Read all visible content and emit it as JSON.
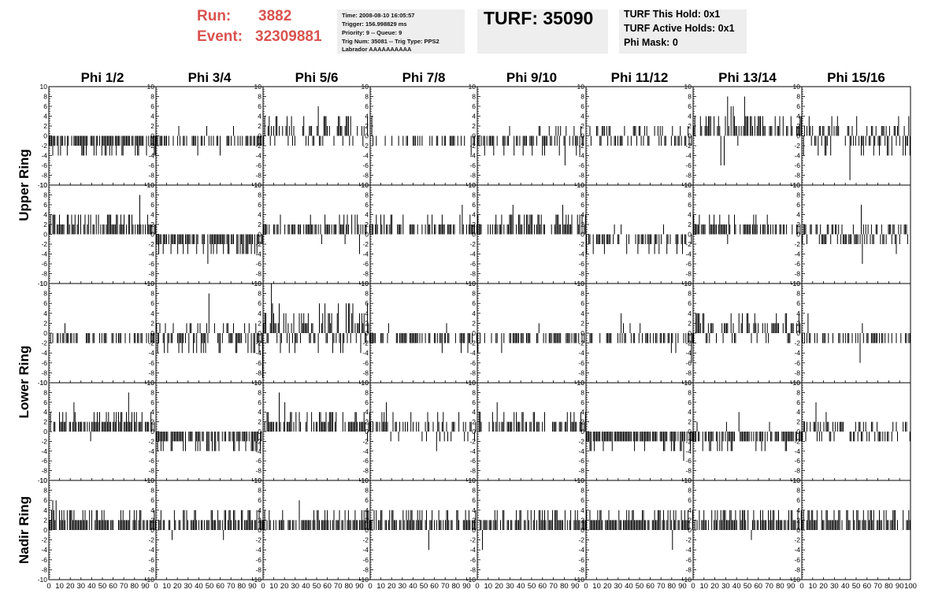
{
  "header": {
    "run_label": "Run:",
    "run_value": "3882",
    "event_label": "Event:",
    "event_value": "32309881",
    "info_lines": [
      "Time: 2008-08-10 16:05:57",
      "Trigger: 156.998829 ms",
      "Priority: 9 -- Queue: 9",
      "Trig Num: 35081 -- Trig Type: PPS2",
      "Labrador AAAAAAAAAA"
    ],
    "turf_title": "TURF: 35090",
    "hold_lines": [
      "TURF This Hold: 0x1",
      "TURF Active Holds: 0x1",
      "Phi Mask: 0"
    ],
    "colors": {
      "red_text": "#d9534f",
      "box_bg": "#eeeeee"
    }
  },
  "chart_data": {
    "type": "bar",
    "columns": [
      "Phi 1/2",
      "Phi 3/4",
      "Phi 5/6",
      "Phi 7/8",
      "Phi 9/10",
      "Phi 11/12",
      "Phi 13/14",
      "Phi 15/16"
    ],
    "ring_labels": [
      {
        "label": "Upper Ring"
      },
      {
        "label": "Lower Ring"
      },
      {
        "label": "Nadir Ring"
      }
    ],
    "ylim": [
      -10,
      10
    ],
    "y_ticks": [
      "10",
      "8",
      "6",
      "4",
      "2",
      "0",
      "-2",
      "-4",
      "-6",
      "-8",
      "-10"
    ],
    "xlim": [
      0,
      100
    ],
    "x_ticks": [
      "0",
      "10",
      "20",
      "30",
      "40",
      "50",
      "60",
      "70",
      "80",
      "90",
      "100"
    ],
    "samples_per_panel": 96,
    "panel_rows": [
      [
        {
          "base": -2,
          "amp": 2
        },
        {
          "base": -1,
          "amp": 2
        },
        {
          "base": 1,
          "amp": 3
        },
        {
          "base": -0.5,
          "amp": 1.5
        },
        {
          "base": -1,
          "amp": 2.5
        },
        {
          "base": 0,
          "amp": 2.5
        },
        {
          "base": 2,
          "amp": 3
        },
        {
          "base": 0,
          "amp": 4
        }
      ],
      [
        {
          "base": 2,
          "amp": 2
        },
        {
          "base": -2,
          "amp": 2
        },
        {
          "base": 1.5,
          "amp": 2
        },
        {
          "base": 1.5,
          "amp": 2
        },
        {
          "base": 1.5,
          "amp": 2.5
        },
        {
          "base": -1.5,
          "amp": 2
        },
        {
          "base": 1.5,
          "amp": 2
        },
        {
          "base": 0,
          "amp": 3
        }
      ],
      [
        {
          "base": -1,
          "amp": 2
        },
        {
          "base": -1,
          "amp": 3
        },
        {
          "base": 1,
          "amp": 5
        },
        {
          "base": -1,
          "amp": 2
        },
        {
          "base": -1,
          "amp": 2
        },
        {
          "base": -1,
          "amp": 2
        },
        {
          "base": 1,
          "amp": 3
        },
        {
          "base": -1,
          "amp": 2
        }
      ],
      [
        {
          "base": 2,
          "amp": 2
        },
        {
          "base": -2,
          "amp": 2
        },
        {
          "base": 2,
          "amp": 2
        },
        {
          "base": 1,
          "amp": 2.5
        },
        {
          "base": 1.5,
          "amp": 2
        },
        {
          "base": -2,
          "amp": 1.5
        },
        {
          "base": -1.5,
          "amp": 2
        },
        {
          "base": 0,
          "amp": 2.5
        }
      ],
      [
        {
          "base": 2,
          "amp": 2
        },
        {
          "base": 2,
          "amp": 2
        },
        {
          "base": 2,
          "amp": 2
        },
        {
          "base": 2,
          "amp": 2.5
        },
        {
          "base": 2,
          "amp": 2
        },
        {
          "base": 2,
          "amp": 2
        },
        {
          "base": 2,
          "amp": 2
        },
        {
          "base": 2,
          "amp": 2
        }
      ]
    ]
  }
}
